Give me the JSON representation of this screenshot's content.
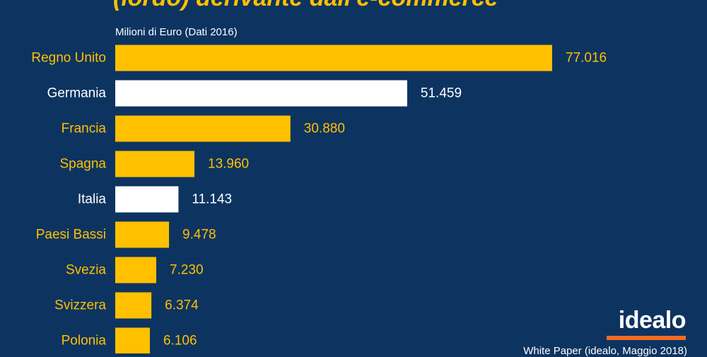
{
  "chart_data": {
    "type": "bar",
    "orientation": "horizontal",
    "title": "(lordo) derivante dall'e-commerce",
    "subtitle": "Milioni di Euro (Dati 2016)",
    "categories": [
      "Regno Unito",
      "Germania",
      "Francia",
      "Spagna",
      "Italia",
      "Paesi Bassi",
      "Svezia",
      "Svizzera",
      "Polonia"
    ],
    "values": [
      77016,
      51459,
      30880,
      13960,
      11143,
      9478,
      7230,
      6374,
      6106
    ],
    "value_labels": [
      "77.016",
      "51.459",
      "30.880",
      "13.960",
      "11.143",
      "9.478",
      "7.230",
      "6.374",
      "6.106"
    ],
    "highlighted": [
      false,
      true,
      false,
      false,
      true,
      false,
      false,
      false,
      false
    ],
    "colors": {
      "default": "#ffc000",
      "highlight": "#ffffff",
      "background": "#0d3461"
    },
    "grid": false
  },
  "brand": {
    "logo_text": "idealo",
    "accent": "#f26b21"
  },
  "source_text": "White Paper (idealo, Maggio 2018)"
}
